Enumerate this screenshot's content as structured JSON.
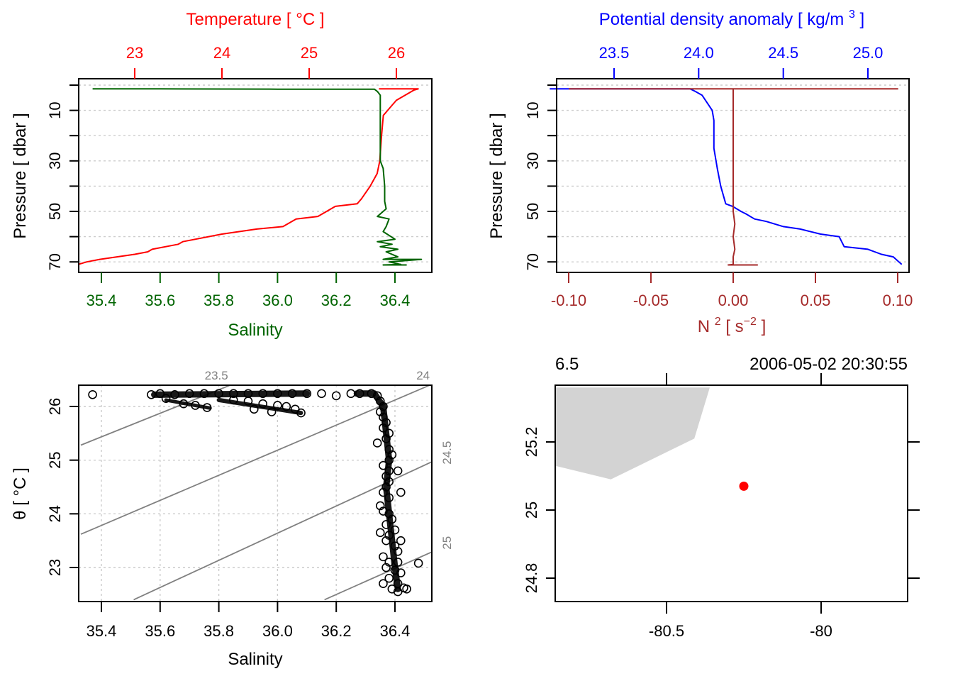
{
  "chart_data": [
    {
      "id": "profile-ts",
      "type": "line",
      "title": "",
      "ylabel": "Pressure [ dbar ]",
      "ylim": [
        72,
        -2
      ],
      "yticks": [
        10,
        30,
        50,
        70
      ],
      "ygrid": [
        0,
        10,
        20,
        30,
        40,
        50,
        60,
        70
      ],
      "bottom_axis": {
        "label": "Salinity",
        "color": "#006400",
        "ticks": [
          35.4,
          35.6,
          35.8,
          36.0,
          36.2,
          36.4
        ],
        "tick_labels": [
          "35.4",
          "35.6",
          "35.8",
          "36.0",
          "36.2",
          "36.4"
        ]
      },
      "top_axis": {
        "label": "Temperature [ °C ]",
        "color": "#ff0000",
        "ticks": [
          23,
          24,
          25,
          26
        ],
        "tick_labels": [
          "23",
          "24",
          "25",
          "26"
        ]
      },
      "series": [
        {
          "name": "Salinity",
          "axis": "bottom",
          "color": "#006400",
          "points": [
            [
              35.37,
              1.5
            ],
            [
              35.6,
              1.5
            ],
            [
              36.0,
              1.6
            ],
            [
              36.33,
              1.6
            ],
            [
              36.34,
              2.5
            ],
            [
              36.35,
              4
            ],
            [
              36.35,
              10
            ],
            [
              36.35,
              20
            ],
            [
              36.35,
              30
            ],
            [
              36.36,
              33
            ],
            [
              36.365,
              40
            ],
            [
              36.365,
              46
            ],
            [
              36.37,
              49
            ],
            [
              36.34,
              52
            ],
            [
              36.38,
              53
            ],
            [
              36.37,
              56
            ],
            [
              36.36,
              58
            ],
            [
              36.4,
              61
            ],
            [
              36.34,
              62
            ],
            [
              36.39,
              63
            ],
            [
              36.35,
              64
            ],
            [
              36.41,
              65
            ],
            [
              36.37,
              66
            ],
            [
              36.41,
              68
            ],
            [
              36.36,
              69
            ],
            [
              36.49,
              69
            ],
            [
              36.38,
              70
            ],
            [
              36.42,
              71
            ],
            [
              36.36,
              71.2
            ],
            [
              36.44,
              71.2
            ]
          ]
        },
        {
          "name": "Temperature",
          "axis": "top",
          "color": "#ff0000",
          "points": [
            [
              25.8,
              1.5
            ],
            [
              26.25,
              1.5
            ],
            [
              26.2,
              2
            ],
            [
              26.1,
              4
            ],
            [
              26.0,
              6
            ],
            [
              25.95,
              8
            ],
            [
              25.9,
              10
            ],
            [
              25.85,
              12
            ],
            [
              25.83,
              20
            ],
            [
              25.81,
              30
            ],
            [
              25.78,
              35
            ],
            [
              25.7,
              40
            ],
            [
              25.6,
              45
            ],
            [
              25.55,
              47
            ],
            [
              25.3,
              48
            ],
            [
              25.1,
              52
            ],
            [
              24.85,
              53
            ],
            [
              24.7,
              56
            ],
            [
              24.4,
              57
            ],
            [
              24.0,
              59
            ],
            [
              23.55,
              62
            ],
            [
              23.5,
              63
            ],
            [
              23.2,
              65
            ],
            [
              23.15,
              66
            ],
            [
              23.0,
              67
            ],
            [
              22.6,
              69
            ],
            [
              22.45,
              70
            ],
            [
              22.35,
              71
            ]
          ]
        }
      ]
    },
    {
      "id": "profile-density",
      "type": "line",
      "ylabel": "Pressure [ dbar ]",
      "ylim": [
        72,
        -2
      ],
      "yticks": [
        10,
        30,
        50,
        70
      ],
      "ygrid": [
        0,
        10,
        20,
        30,
        40,
        50,
        60,
        70
      ],
      "bottom_axis": {
        "label": "N2 [ s-2 ]",
        "color": "#a52a2a",
        "ticks": [
          -0.1,
          -0.05,
          0.0,
          0.05,
          0.1
        ],
        "tick_labels": [
          "-0.10",
          "-0.05",
          "0.00",
          "0.05",
          "0.10"
        ]
      },
      "top_axis": {
        "label": "Potential density anomaly [ kg/m3 ]",
        "color": "#0000ff",
        "ticks": [
          23.5,
          24.0,
          24.5,
          25.0
        ],
        "tick_labels": [
          "23.5",
          "24.0",
          "24.5",
          "25.0"
        ]
      },
      "series": [
        {
          "name": "Potential density anomaly",
          "axis": "top",
          "color": "#0000ff",
          "points": [
            [
              23.12,
              1.5
            ],
            [
              23.95,
              1.5
            ],
            [
              23.98,
              2.5
            ],
            [
              24.02,
              4
            ],
            [
              24.05,
              7
            ],
            [
              24.08,
              10
            ],
            [
              24.09,
              14
            ],
            [
              24.09,
              25
            ],
            [
              24.11,
              33
            ],
            [
              24.13,
              40
            ],
            [
              24.16,
              47
            ],
            [
              24.2,
              48
            ],
            [
              24.25,
              50
            ],
            [
              24.28,
              51
            ],
            [
              24.33,
              53
            ],
            [
              24.4,
              54
            ],
            [
              24.5,
              56
            ],
            [
              24.6,
              57
            ],
            [
              24.72,
              59
            ],
            [
              24.83,
              60
            ],
            [
              24.86,
              64
            ],
            [
              25.0,
              65
            ],
            [
              25.08,
              67
            ],
            [
              25.15,
              68
            ],
            [
              25.2,
              71
            ]
          ]
        },
        {
          "name": "N2",
          "axis": "bottom",
          "color": "#a52a2a",
          "points": [
            [
              -0.1,
              1.5
            ],
            [
              0.1,
              1.5
            ],
            [
              0.0,
              1.5
            ],
            [
              0.0,
              50
            ],
            [
              0.001,
              55
            ],
            [
              0.0,
              60
            ],
            [
              0.001,
              65
            ],
            [
              0.0,
              68
            ],
            [
              0.0,
              71
            ],
            [
              -0.003,
              71.2
            ],
            [
              0.015,
              71.2
            ]
          ]
        }
      ]
    },
    {
      "id": "ts-diagram",
      "type": "scatter",
      "xlabel": "Salinity",
      "ylabel": "θ [ °C ]",
      "xlim": [
        35.33,
        36.53
      ],
      "ylim": [
        22.4,
        26.4
      ],
      "xticks": [
        35.4,
        35.6,
        35.8,
        36.0,
        36.2,
        36.4
      ],
      "xtick_labels": [
        "35.4",
        "35.6",
        "35.8",
        "36.0",
        "36.2",
        "36.4"
      ],
      "yticks": [
        23,
        24,
        25,
        26
      ],
      "ytick_labels": [
        "23",
        "24",
        "25",
        "26"
      ],
      "grid": true,
      "isopycnals": [
        {
          "label": "23.5",
          "p1": [
            35.33,
            25.28
          ],
          "p2": [
            35.84,
            26.4
          ]
        },
        {
          "label": "24",
          "p1": [
            35.33,
            23.62
          ],
          "p2": [
            36.52,
            26.4
          ]
        },
        {
          "label": "24.5",
          "p1": [
            35.51,
            22.4
          ],
          "p2": [
            36.53,
            24.98
          ]
        },
        {
          "label": "25",
          "p1": [
            36.16,
            22.4
          ],
          "p2": [
            36.53,
            23.3
          ]
        }
      ],
      "points": [
        [
          35.37,
          26.22
        ],
        [
          35.57,
          26.22
        ],
        [
          35.6,
          26.24
        ],
        [
          35.65,
          26.22
        ],
        [
          35.7,
          26.24
        ],
        [
          35.75,
          26.24
        ],
        [
          35.8,
          26.24
        ],
        [
          35.85,
          26.24
        ],
        [
          35.9,
          26.24
        ],
        [
          35.95,
          26.24
        ],
        [
          36.0,
          26.24
        ],
        [
          36.05,
          26.24
        ],
        [
          36.1,
          26.24
        ],
        [
          35.62,
          26.15
        ],
        [
          35.68,
          26.05
        ],
        [
          35.72,
          26.02
        ],
        [
          35.76,
          25.98
        ],
        [
          35.85,
          26.12
        ],
        [
          35.9,
          26.1
        ],
        [
          35.95,
          26.05
        ],
        [
          36.0,
          26.02
        ],
        [
          36.03,
          26.0
        ],
        [
          36.06,
          25.95
        ],
        [
          36.08,
          25.88
        ],
        [
          35.98,
          25.9
        ],
        [
          35.92,
          25.95
        ],
        [
          36.15,
          26.24
        ],
        [
          36.2,
          26.2
        ],
        [
          36.25,
          26.24
        ],
        [
          36.28,
          26.24
        ],
        [
          36.32,
          26.24
        ],
        [
          36.34,
          26.2
        ],
        [
          36.35,
          26.1
        ],
        [
          36.36,
          26.0
        ],
        [
          36.35,
          25.9
        ],
        [
          36.36,
          25.8
        ],
        [
          36.37,
          25.7
        ],
        [
          36.36,
          25.6
        ],
        [
          36.38,
          25.5
        ],
        [
          36.37,
          25.4
        ],
        [
          36.34,
          25.32
        ],
        [
          36.38,
          25.2
        ],
        [
          36.39,
          25.1
        ],
        [
          36.38,
          25.0
        ],
        [
          36.36,
          24.9
        ],
        [
          36.38,
          24.8
        ],
        [
          36.41,
          24.8
        ],
        [
          36.37,
          24.7
        ],
        [
          36.38,
          24.6
        ],
        [
          36.37,
          24.5
        ],
        [
          36.36,
          24.4
        ],
        [
          36.42,
          24.4
        ],
        [
          36.38,
          24.3
        ],
        [
          36.35,
          24.15
        ],
        [
          36.36,
          24.05
        ],
        [
          36.38,
          24.0
        ],
        [
          36.39,
          23.9
        ],
        [
          36.37,
          23.8
        ],
        [
          36.4,
          23.7
        ],
        [
          36.35,
          23.65
        ],
        [
          36.38,
          23.6
        ],
        [
          36.37,
          23.5
        ],
        [
          36.42,
          23.5
        ],
        [
          36.4,
          23.4
        ],
        [
          36.41,
          23.3
        ],
        [
          36.36,
          23.2
        ],
        [
          36.38,
          23.1
        ],
        [
          36.41,
          23.1
        ],
        [
          36.48,
          23.08
        ],
        [
          36.37,
          23.0
        ],
        [
          36.4,
          22.95
        ],
        [
          36.42,
          22.9
        ],
        [
          36.38,
          22.8
        ],
        [
          36.41,
          22.7
        ],
        [
          36.36,
          22.7
        ],
        [
          36.43,
          22.62
        ],
        [
          36.39,
          22.6
        ],
        [
          36.41,
          22.55
        ],
        [
          36.44,
          22.6
        ]
      ]
    },
    {
      "id": "station-map",
      "type": "scatter",
      "xlim": [
        -80.86,
        -79.72
      ],
      "ylim": [
        24.71,
        25.36
      ],
      "xticks": [
        -80.5,
        -80
      ],
      "xtick_labels": [
        "-80.5",
        "-80"
      ],
      "yticks": [
        24.8,
        25,
        25.2
      ],
      "ytick_labels": [
        "24.8",
        "25",
        "25.2"
      ],
      "top_labels": [
        "6.5",
        "2006-05-02 20:30:55"
      ],
      "land": {
        "color": "#d3d3d3",
        "polygon": [
          [
            -80.86,
            25.36
          ],
          [
            -80.36,
            25.36
          ],
          [
            -80.41,
            25.21
          ],
          [
            -80.68,
            25.09
          ],
          [
            -80.86,
            25.13
          ]
        ]
      },
      "station": {
        "lon": -80.25,
        "lat": 25.07,
        "color": "#ff0000"
      }
    }
  ]
}
